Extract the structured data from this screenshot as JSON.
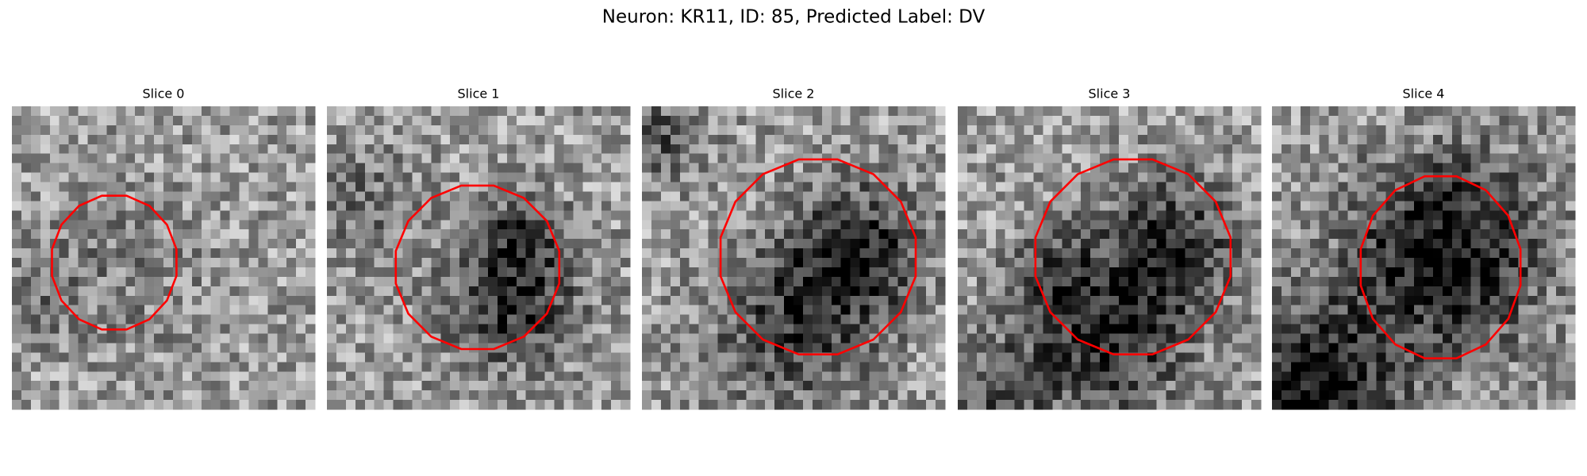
{
  "title": "Neuron: KR11, ID: 85, Predicted Label: DV",
  "panels": [
    {
      "title": "Slice 0"
    },
    {
      "title": "Slice 1"
    },
    {
      "title": "Slice 2"
    },
    {
      "title": "Slice 3"
    },
    {
      "title": "Slice 4"
    }
  ]
}
